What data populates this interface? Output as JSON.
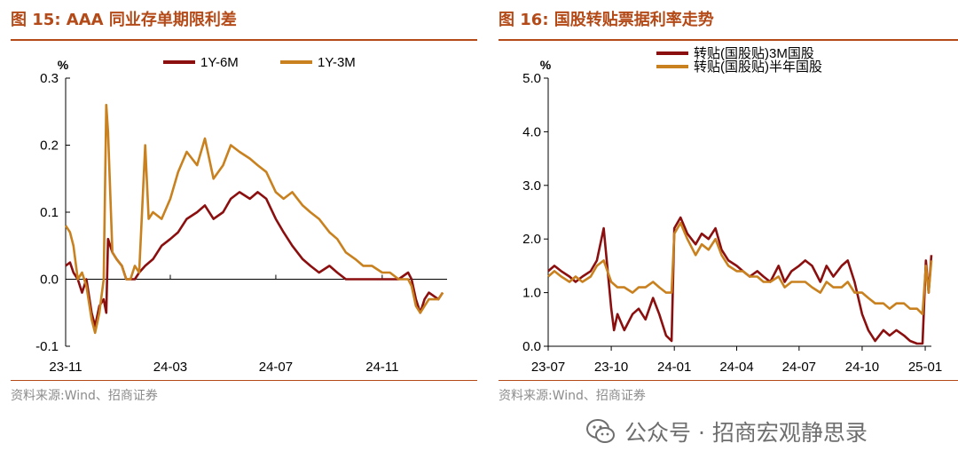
{
  "left": {
    "title": "图 15:  AAA 同业存单期限利差",
    "source": "资料来源:Wind、招商证券"
  },
  "right": {
    "title": "图 16:  国股转贴票据利率走势",
    "source": "资料来源:Wind、招商证券"
  },
  "watermark": "公众号 · 招商宏观静思录",
  "colors": {
    "accent": "#b34a18",
    "darkred": "#8b0f0f",
    "gold": "#c8811e"
  },
  "chart_data": [
    {
      "type": "line",
      "ylabel": "%",
      "ylim": [
        -0.1,
        0.3
      ],
      "yticks": [
        "-0.1",
        "0.0",
        "0.1",
        "0.2",
        "0.3"
      ],
      "xticks": [
        "23-11",
        "24-03",
        "24-07",
        "24-11"
      ],
      "x_range": [
        "2023-11-01",
        "2025-01-15"
      ],
      "legend": "top",
      "grid": false,
      "series": [
        {
          "name": "1Y-6M",
          "color": "#8b0f0f",
          "points": [
            [
              "2023-11-01",
              0.02
            ],
            [
              "2023-11-06",
              0.025
            ],
            [
              "2023-11-10",
              0.01
            ],
            [
              "2023-11-15",
              0.0
            ],
            [
              "2023-11-20",
              -0.02
            ],
            [
              "2023-11-25",
              0.0
            ],
            [
              "2023-12-01",
              -0.05
            ],
            [
              "2023-12-05",
              -0.07
            ],
            [
              "2023-12-10",
              -0.04
            ],
            [
              "2023-12-15",
              -0.03
            ],
            [
              "2023-12-18",
              -0.05
            ],
            [
              "2023-12-20",
              0.06
            ],
            [
              "2023-12-25",
              0.04
            ],
            [
              "2023-12-30",
              0.03
            ],
            [
              "2024-01-05",
              0.02
            ],
            [
              "2024-01-10",
              0.0
            ],
            [
              "2024-01-15",
              0.0
            ],
            [
              "2024-01-20",
              0.0
            ],
            [
              "2024-01-25",
              0.01
            ],
            [
              "2024-02-01",
              0.02
            ],
            [
              "2024-02-10",
              0.03
            ],
            [
              "2024-02-20",
              0.05
            ],
            [
              "2024-03-01",
              0.06
            ],
            [
              "2024-03-10",
              0.07
            ],
            [
              "2024-03-20",
              0.09
            ],
            [
              "2024-04-01",
              0.1
            ],
            [
              "2024-04-10",
              0.11
            ],
            [
              "2024-04-20",
              0.09
            ],
            [
              "2024-05-01",
              0.1
            ],
            [
              "2024-05-10",
              0.12
            ],
            [
              "2024-05-20",
              0.13
            ],
            [
              "2024-06-01",
              0.12
            ],
            [
              "2024-06-10",
              0.13
            ],
            [
              "2024-06-20",
              0.12
            ],
            [
              "2024-07-01",
              0.09
            ],
            [
              "2024-07-10",
              0.07
            ],
            [
              "2024-07-20",
              0.05
            ],
            [
              "2024-08-01",
              0.03
            ],
            [
              "2024-08-10",
              0.02
            ],
            [
              "2024-08-20",
              0.01
            ],
            [
              "2024-09-01",
              0.02
            ],
            [
              "2024-09-10",
              0.01
            ],
            [
              "2024-09-20",
              0.0
            ],
            [
              "2024-10-01",
              0.0
            ],
            [
              "2024-10-10",
              0.0
            ],
            [
              "2024-10-20",
              0.0
            ],
            [
              "2024-11-01",
              0.0
            ],
            [
              "2024-11-10",
              0.0
            ],
            [
              "2024-11-20",
              0.0
            ],
            [
              "2024-12-01",
              0.01
            ],
            [
              "2024-12-05",
              0.0
            ],
            [
              "2024-12-10",
              -0.03
            ],
            [
              "2024-12-15",
              -0.05
            ],
            [
              "2024-12-20",
              -0.03
            ],
            [
              "2024-12-25",
              -0.02
            ],
            [
              "2025-01-05",
              -0.03
            ],
            [
              "2025-01-10",
              -0.02
            ]
          ]
        },
        {
          "name": "1Y-3M",
          "color": "#c8811e",
          "points": [
            [
              "2023-11-01",
              0.08
            ],
            [
              "2023-11-06",
              0.07
            ],
            [
              "2023-11-10",
              0.05
            ],
            [
              "2023-11-15",
              0.0
            ],
            [
              "2023-11-20",
              0.01
            ],
            [
              "2023-11-25",
              -0.01
            ],
            [
              "2023-12-01",
              -0.06
            ],
            [
              "2023-12-05",
              -0.08
            ],
            [
              "2023-12-10",
              -0.05
            ],
            [
              "2023-12-15",
              0.0
            ],
            [
              "2023-12-18",
              0.26
            ],
            [
              "2023-12-20",
              0.22
            ],
            [
              "2023-12-25",
              0.04
            ],
            [
              "2023-12-30",
              0.03
            ],
            [
              "2024-01-05",
              0.02
            ],
            [
              "2024-01-10",
              0.0
            ],
            [
              "2024-01-15",
              0.0
            ],
            [
              "2024-01-20",
              0.02
            ],
            [
              "2024-01-25",
              0.01
            ],
            [
              "2024-02-01",
              0.2
            ],
            [
              "2024-02-05",
              0.09
            ],
            [
              "2024-02-10",
              0.1
            ],
            [
              "2024-02-20",
              0.09
            ],
            [
              "2024-03-01",
              0.12
            ],
            [
              "2024-03-10",
              0.16
            ],
            [
              "2024-03-20",
              0.19
            ],
            [
              "2024-04-01",
              0.17
            ],
            [
              "2024-04-10",
              0.21
            ],
            [
              "2024-04-20",
              0.15
            ],
            [
              "2024-05-01",
              0.17
            ],
            [
              "2024-05-10",
              0.2
            ],
            [
              "2024-05-20",
              0.19
            ],
            [
              "2024-06-01",
              0.18
            ],
            [
              "2024-06-10",
              0.17
            ],
            [
              "2024-06-20",
              0.16
            ],
            [
              "2024-07-01",
              0.13
            ],
            [
              "2024-07-10",
              0.12
            ],
            [
              "2024-07-20",
              0.13
            ],
            [
              "2024-08-01",
              0.11
            ],
            [
              "2024-08-10",
              0.1
            ],
            [
              "2024-08-20",
              0.09
            ],
            [
              "2024-09-01",
              0.07
            ],
            [
              "2024-09-10",
              0.06
            ],
            [
              "2024-09-20",
              0.04
            ],
            [
              "2024-10-01",
              0.03
            ],
            [
              "2024-10-10",
              0.02
            ],
            [
              "2024-10-20",
              0.02
            ],
            [
              "2024-11-01",
              0.01
            ],
            [
              "2024-11-10",
              0.01
            ],
            [
              "2024-11-20",
              0.0
            ],
            [
              "2024-12-01",
              0.0
            ],
            [
              "2024-12-05",
              -0.01
            ],
            [
              "2024-12-10",
              -0.04
            ],
            [
              "2024-12-15",
              -0.05
            ],
            [
              "2024-12-20",
              -0.04
            ],
            [
              "2024-12-25",
              -0.03
            ],
            [
              "2025-01-05",
              -0.03
            ],
            [
              "2025-01-10",
              -0.02
            ]
          ]
        }
      ]
    },
    {
      "type": "line",
      "ylabel": "%",
      "ylim": [
        0.0,
        5.0
      ],
      "yticks": [
        "0.0",
        "1.0",
        "2.0",
        "3.0",
        "4.0",
        "5.0"
      ],
      "xticks": [
        "23-07",
        "23-10",
        "24-01",
        "24-04",
        "24-07",
        "24-10",
        "25-01"
      ],
      "x_range": [
        "2023-07-01",
        "2025-01-10"
      ],
      "legend": "top",
      "grid": false,
      "series": [
        {
          "name": "转贴(国股贴)3M国股",
          "color": "#8b0f0f",
          "points": [
            [
              "2023-07-01",
              1.4
            ],
            [
              "2023-07-10",
              1.5
            ],
            [
              "2023-07-20",
              1.4
            ],
            [
              "2023-08-01",
              1.3
            ],
            [
              "2023-08-10",
              1.2
            ],
            [
              "2023-08-20",
              1.3
            ],
            [
              "2023-09-01",
              1.4
            ],
            [
              "2023-09-10",
              1.6
            ],
            [
              "2023-09-20",
              2.2
            ],
            [
              "2023-10-01",
              0.7
            ],
            [
              "2023-10-05",
              0.3
            ],
            [
              "2023-10-10",
              0.6
            ],
            [
              "2023-10-20",
              0.3
            ],
            [
              "2023-11-01",
              0.6
            ],
            [
              "2023-11-10",
              0.7
            ],
            [
              "2023-11-20",
              0.5
            ],
            [
              "2023-12-01",
              0.9
            ],
            [
              "2023-12-10",
              0.6
            ],
            [
              "2023-12-20",
              0.2
            ],
            [
              "2023-12-28",
              0.1
            ],
            [
              "2024-01-01",
              2.2
            ],
            [
              "2024-01-10",
              2.4
            ],
            [
              "2024-01-20",
              2.1
            ],
            [
              "2024-02-01",
              1.9
            ],
            [
              "2024-02-10",
              2.1
            ],
            [
              "2024-02-20",
              2.0
            ],
            [
              "2024-03-01",
              2.2
            ],
            [
              "2024-03-10",
              1.8
            ],
            [
              "2024-03-20",
              1.6
            ],
            [
              "2024-04-01",
              1.5
            ],
            [
              "2024-04-10",
              1.4
            ],
            [
              "2024-04-20",
              1.3
            ],
            [
              "2024-05-01",
              1.4
            ],
            [
              "2024-05-10",
              1.3
            ],
            [
              "2024-05-20",
              1.2
            ],
            [
              "2024-06-01",
              1.5
            ],
            [
              "2024-06-10",
              1.2
            ],
            [
              "2024-06-20",
              1.4
            ],
            [
              "2024-07-01",
              1.5
            ],
            [
              "2024-07-10",
              1.6
            ],
            [
              "2024-07-20",
              1.5
            ],
            [
              "2024-08-01",
              1.2
            ],
            [
              "2024-08-10",
              1.5
            ],
            [
              "2024-08-20",
              1.3
            ],
            [
              "2024-09-01",
              1.5
            ],
            [
              "2024-09-10",
              1.6
            ],
            [
              "2024-09-20",
              1.2
            ],
            [
              "2024-10-01",
              0.6
            ],
            [
              "2024-10-10",
              0.3
            ],
            [
              "2024-10-20",
              0.1
            ],
            [
              "2024-11-01",
              0.3
            ],
            [
              "2024-11-10",
              0.2
            ],
            [
              "2024-11-20",
              0.3
            ],
            [
              "2024-12-01",
              0.2
            ],
            [
              "2024-12-10",
              0.1
            ],
            [
              "2024-12-20",
              0.05
            ],
            [
              "2024-12-28",
              0.05
            ],
            [
              "2025-01-02",
              1.6
            ],
            [
              "2025-01-06",
              1.0
            ],
            [
              "2025-01-10",
              1.7
            ]
          ]
        },
        {
          "name": "转贴(国股贴)半年国股",
          "color": "#c8811e",
          "points": [
            [
              "2023-07-01",
              1.3
            ],
            [
              "2023-07-10",
              1.4
            ],
            [
              "2023-07-20",
              1.3
            ],
            [
              "2023-08-01",
              1.2
            ],
            [
              "2023-08-10",
              1.3
            ],
            [
              "2023-08-20",
              1.2
            ],
            [
              "2023-09-01",
              1.3
            ],
            [
              "2023-09-10",
              1.5
            ],
            [
              "2023-09-20",
              1.6
            ],
            [
              "2023-10-01",
              1.2
            ],
            [
              "2023-10-10",
              1.1
            ],
            [
              "2023-10-20",
              1.1
            ],
            [
              "2023-11-01",
              1.0
            ],
            [
              "2023-11-10",
              1.1
            ],
            [
              "2023-11-20",
              1.1
            ],
            [
              "2023-12-01",
              1.2
            ],
            [
              "2023-12-10",
              1.1
            ],
            [
              "2023-12-20",
              1.0
            ],
            [
              "2023-12-28",
              1.0
            ],
            [
              "2024-01-01",
              2.1
            ],
            [
              "2024-01-10",
              2.3
            ],
            [
              "2024-01-20",
              2.0
            ],
            [
              "2024-02-01",
              1.7
            ],
            [
              "2024-02-10",
              1.9
            ],
            [
              "2024-02-20",
              1.8
            ],
            [
              "2024-03-01",
              2.0
            ],
            [
              "2024-03-10",
              1.7
            ],
            [
              "2024-03-20",
              1.5
            ],
            [
              "2024-04-01",
              1.4
            ],
            [
              "2024-04-10",
              1.4
            ],
            [
              "2024-04-20",
              1.3
            ],
            [
              "2024-05-01",
              1.3
            ],
            [
              "2024-05-10",
              1.2
            ],
            [
              "2024-05-20",
              1.2
            ],
            [
              "2024-06-01",
              1.3
            ],
            [
              "2024-06-10",
              1.1
            ],
            [
              "2024-06-20",
              1.2
            ],
            [
              "2024-07-01",
              1.2
            ],
            [
              "2024-07-10",
              1.2
            ],
            [
              "2024-07-20",
              1.1
            ],
            [
              "2024-08-01",
              1.0
            ],
            [
              "2024-08-10",
              1.2
            ],
            [
              "2024-08-20",
              1.1
            ],
            [
              "2024-09-01",
              1.1
            ],
            [
              "2024-09-10",
              1.2
            ],
            [
              "2024-09-20",
              1.0
            ],
            [
              "2024-10-01",
              1.0
            ],
            [
              "2024-10-10",
              0.9
            ],
            [
              "2024-10-20",
              0.8
            ],
            [
              "2024-11-01",
              0.8
            ],
            [
              "2024-11-10",
              0.7
            ],
            [
              "2024-11-20",
              0.8
            ],
            [
              "2024-12-01",
              0.8
            ],
            [
              "2024-12-10",
              0.7
            ],
            [
              "2024-12-20",
              0.7
            ],
            [
              "2024-12-28",
              0.6
            ],
            [
              "2025-01-02",
              1.5
            ],
            [
              "2025-01-06",
              1.0
            ],
            [
              "2025-01-10",
              1.6
            ]
          ]
        }
      ]
    }
  ]
}
